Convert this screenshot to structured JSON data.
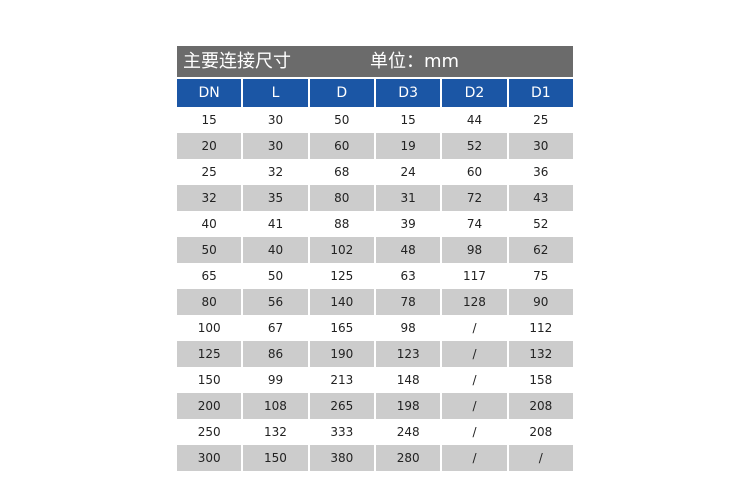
{
  "title": "主要连接尺寸",
  "unit": "单位：mm",
  "columns": [
    "DN",
    "L",
    "D",
    "D3",
    "D2",
    "D1"
  ],
  "rows": [
    [
      "15",
      "30",
      "50",
      "15",
      "44",
      "25"
    ],
    [
      "20",
      "30",
      "60",
      "19",
      "52",
      "30"
    ],
    [
      "25",
      "32",
      "68",
      "24",
      "60",
      "36"
    ],
    [
      "32",
      "35",
      "80",
      "31",
      "72",
      "43"
    ],
    [
      "40",
      "41",
      "88",
      "39",
      "74",
      "52"
    ],
    [
      "50",
      "40",
      "102",
      "48",
      "98",
      "62"
    ],
    [
      "65",
      "50",
      "125",
      "63",
      "117",
      "75"
    ],
    [
      "80",
      "56",
      "140",
      "78",
      "128",
      "90"
    ],
    [
      "100",
      "67",
      "165",
      "98",
      "/",
      "112"
    ],
    [
      "125",
      "86",
      "190",
      "123",
      "/",
      "132"
    ],
    [
      "150",
      "99",
      "213",
      "148",
      "/",
      "158"
    ],
    [
      "200",
      "108",
      "265",
      "198",
      "/",
      "208"
    ],
    [
      "250",
      "132",
      "333",
      "248",
      "/",
      "208"
    ],
    [
      "300",
      "150",
      "380",
      "280",
      "/",
      "/"
    ]
  ],
  "colors": {
    "title_bg": "#6b6b6b",
    "header_bg": "#1b56a5",
    "stripe": "#cccccc"
  }
}
